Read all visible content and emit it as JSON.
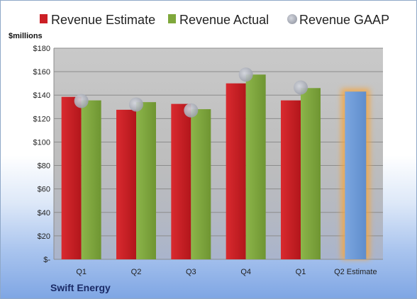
{
  "company": "Swift Energy",
  "chart_data": {
    "type": "bar",
    "unit_label": "$millions",
    "categories": [
      "Q1",
      "Q2",
      "Q3",
      "Q4",
      "Q1",
      "Q2 Estimate"
    ],
    "series": [
      {
        "name": "Revenue Estimate",
        "color": "#cc1f25",
        "values": [
          138.5,
          127.5,
          132.5,
          150,
          135.5,
          null
        ]
      },
      {
        "name": "Revenue Actual",
        "color": "#7fa83c",
        "values": [
          135.5,
          134,
          128,
          157.5,
          146,
          null
        ]
      },
      {
        "name": "Revenue GAAP",
        "color": "#b8bcc8",
        "values": [
          135,
          132,
          127,
          157.5,
          146.5,
          null
        ],
        "marker": "circle"
      }
    ],
    "projection": {
      "category": "Q2 Estimate",
      "value": 143,
      "color": "#6d9ad8",
      "glow_color": "#f5a640"
    },
    "ylim": [
      0,
      180
    ],
    "yticks": [
      0,
      20,
      40,
      60,
      80,
      100,
      120,
      140,
      160,
      180
    ],
    "ytick_labels": [
      "$-",
      "$20",
      "$40",
      "$60",
      "$80",
      "$100",
      "$120",
      "$140",
      "$160",
      "$180"
    ],
    "grid": true,
    "legend_position": "top"
  }
}
